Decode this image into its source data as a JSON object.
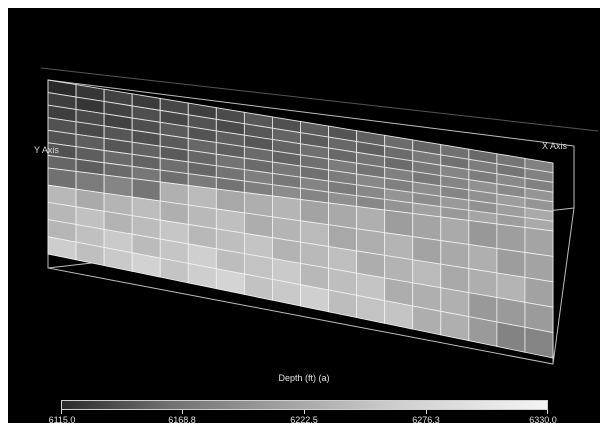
{
  "viewer": {
    "y_axis_label": "Y Axis",
    "x_axis_label": "X Axis",
    "legend_title": "Depth (ft) (a)",
    "colorbar_ticks": [
      "6115.0",
      "6168.8",
      "6222.5",
      "6276.3",
      "6330.0"
    ],
    "colors": {
      "background": "#000000",
      "grid_line": "#dcdcdc",
      "bounding_box": "#bfbfbf"
    }
  }
}
